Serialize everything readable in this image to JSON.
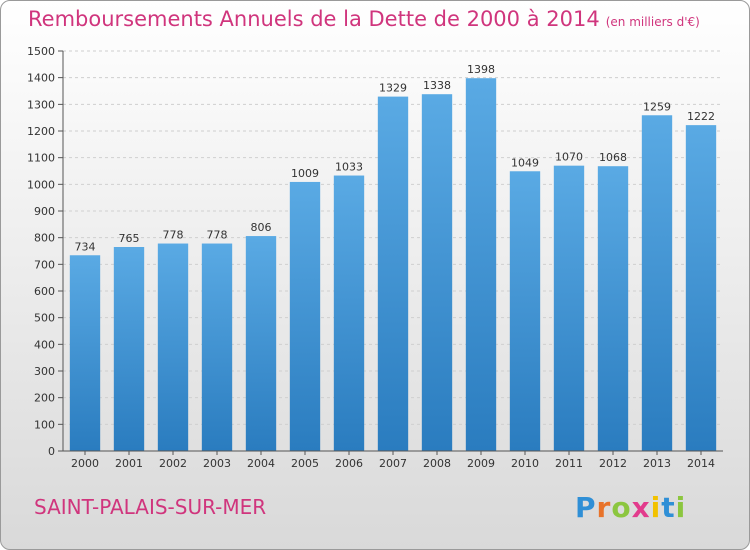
{
  "title": "Remboursements Annuels de la Dette de 2000 à 2014",
  "subtitle": "(en milliers d'€)",
  "city": "SAINT-PALAIS-SUR-MER",
  "logo": {
    "letters": [
      "P",
      "r",
      "o",
      "x",
      "i",
      "t",
      "i"
    ],
    "colors": [
      "#2f8fd6",
      "#e8732a",
      "#8cc63f",
      "#e23b8c",
      "#f2c200",
      "#2f8fd6",
      "#8cc63f"
    ]
  },
  "colors": {
    "accent": "#d0357d",
    "bar_top": "#5aaae4",
    "bar_bottom": "#2a7cbf",
    "grid": "#cfcfcf"
  },
  "chart_data": {
    "type": "bar",
    "categories": [
      "2000",
      "2001",
      "2002",
      "2003",
      "2004",
      "2005",
      "2006",
      "2007",
      "2008",
      "2009",
      "2010",
      "2011",
      "2012",
      "2013",
      "2014"
    ],
    "values": [
      734,
      765,
      778,
      778,
      806,
      1009,
      1033,
      1329,
      1338,
      1398,
      1049,
      1070,
      1068,
      1259,
      1222
    ],
    "ylim": [
      0,
      1500
    ],
    "yticks": [
      0,
      100,
      200,
      300,
      400,
      500,
      600,
      700,
      800,
      900,
      1000,
      1100,
      1200,
      1300,
      1400,
      1500
    ],
    "grid": true
  }
}
